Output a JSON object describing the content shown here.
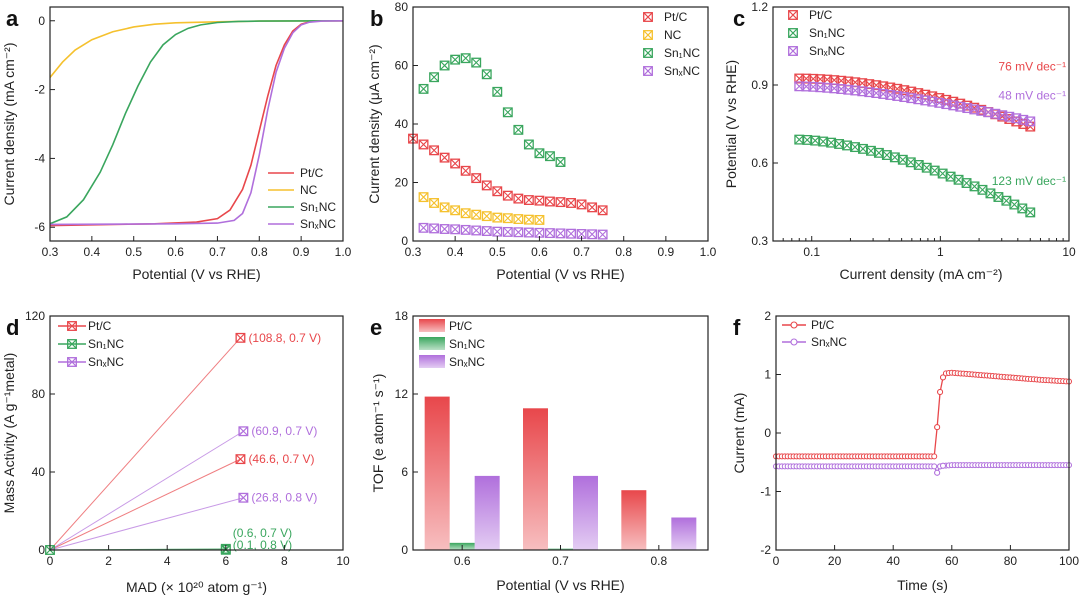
{
  "figure": {
    "panel_letters": [
      "a",
      "b",
      "c",
      "d",
      "e",
      "f"
    ]
  },
  "colors": {
    "pt": "#e8474b",
    "nc": "#f5c12e",
    "sn1": "#3aa65e",
    "snx": "#b06fdc"
  },
  "chart_data": [
    {
      "panel": "a",
      "type": "line",
      "xlabel": "Potential (V vs RHE)",
      "ylabel": "Current density (mA cm⁻²)",
      "xlim": [
        0.3,
        1.0
      ],
      "ylim": [
        -6.4,
        0.4
      ],
      "xticks": [
        "0.3",
        "0.4",
        "0.5",
        "0.6",
        "0.7",
        "0.8",
        "0.9",
        "1.0"
      ],
      "yticks": [
        "0",
        "-2",
        "-4",
        "-6"
      ],
      "series": [
        {
          "name": "Pt/C",
          "label": "Pt/C",
          "color": "#e8474b",
          "x": [
            0.3,
            0.55,
            0.65,
            0.7,
            0.73,
            0.76,
            0.78,
            0.8,
            0.82,
            0.84,
            0.86,
            0.88,
            0.9,
            0.92,
            0.95,
            1.0
          ],
          "y": [
            -5.95,
            -5.9,
            -5.85,
            -5.75,
            -5.5,
            -4.9,
            -4.2,
            -3.2,
            -2.2,
            -1.3,
            -0.7,
            -0.3,
            -0.1,
            -0.03,
            0,
            0
          ]
        },
        {
          "name": "NC",
          "label": "NC",
          "color": "#f5c12e",
          "x": [
            0.3,
            0.33,
            0.36,
            0.4,
            0.45,
            0.5,
            0.55,
            0.6,
            0.7,
            0.8,
            1.0
          ],
          "y": [
            -1.65,
            -1.2,
            -0.85,
            -0.55,
            -0.32,
            -0.18,
            -0.1,
            -0.06,
            -0.03,
            -0.01,
            0
          ]
        },
        {
          "name": "Sn1NC",
          "label": "Sn₁NC",
          "color": "#3aa65e",
          "x": [
            0.3,
            0.34,
            0.38,
            0.42,
            0.45,
            0.48,
            0.51,
            0.54,
            0.57,
            0.6,
            0.63,
            0.66,
            0.7,
            0.75,
            0.8,
            1.0
          ],
          "y": [
            -5.9,
            -5.7,
            -5.2,
            -4.4,
            -3.6,
            -2.7,
            -1.9,
            -1.2,
            -0.7,
            -0.4,
            -0.22,
            -0.12,
            -0.05,
            -0.02,
            -0.01,
            0
          ]
        },
        {
          "name": "SnxNC",
          "label": "SnₓNC",
          "color": "#b06fdc",
          "x": [
            0.3,
            0.6,
            0.7,
            0.74,
            0.76,
            0.78,
            0.8,
            0.82,
            0.84,
            0.86,
            0.88,
            0.9,
            0.92,
            0.95,
            1.0
          ],
          "y": [
            -5.92,
            -5.9,
            -5.88,
            -5.8,
            -5.6,
            -5.0,
            -3.9,
            -2.6,
            -1.5,
            -0.8,
            -0.35,
            -0.12,
            -0.04,
            -0.01,
            0
          ]
        }
      ]
    },
    {
      "panel": "b",
      "type": "scatter",
      "xlabel": "Potential (V vs RHE)",
      "ylabel": "Current density (μA cm⁻²)",
      "xlim": [
        0.3,
        1.0
      ],
      "ylim": [
        0,
        80
      ],
      "xticks": [
        "0.3",
        "0.4",
        "0.5",
        "0.6",
        "0.7",
        "0.8",
        "0.9",
        "1.0"
      ],
      "yticks": [
        "0",
        "20",
        "40",
        "60",
        "80"
      ],
      "series": [
        {
          "name": "Pt/C",
          "label": "Pt/C",
          "color": "#e8474b",
          "x": [
            0.3,
            0.325,
            0.35,
            0.375,
            0.4,
            0.425,
            0.45,
            0.475,
            0.5,
            0.525,
            0.55,
            0.575,
            0.6,
            0.625,
            0.65,
            0.675,
            0.7,
            0.725,
            0.75
          ],
          "y": [
            35,
            33,
            31,
            28.5,
            26.5,
            24,
            21.5,
            19,
            17,
            15.5,
            14.5,
            14,
            13.8,
            13.5,
            13.3,
            13,
            12.5,
            11.5,
            10.5
          ]
        },
        {
          "name": "NC",
          "label": "NC",
          "color": "#f5c12e",
          "x": [
            0.325,
            0.35,
            0.375,
            0.4,
            0.425,
            0.45,
            0.475,
            0.5,
            0.525,
            0.55,
            0.575,
            0.6
          ],
          "y": [
            15,
            13,
            11.5,
            10.5,
            9.5,
            9,
            8.5,
            8,
            7.8,
            7.5,
            7.3,
            7.2
          ]
        },
        {
          "name": "Sn1NC",
          "label": "Sn₁NC",
          "color": "#3aa65e",
          "x": [
            0.325,
            0.35,
            0.375,
            0.4,
            0.425,
            0.45,
            0.475,
            0.5,
            0.525,
            0.55,
            0.575,
            0.6,
            0.625,
            0.65
          ],
          "y": [
            52,
            56,
            60,
            62,
            62.5,
            61,
            57,
            51,
            44,
            38,
            33,
            30,
            29,
            27
          ]
        },
        {
          "name": "SnxNC",
          "label": "SnₓNC",
          "color": "#b06fdc",
          "x": [
            0.325,
            0.35,
            0.375,
            0.4,
            0.425,
            0.45,
            0.475,
            0.5,
            0.525,
            0.55,
            0.575,
            0.6,
            0.625,
            0.65,
            0.675,
            0.7,
            0.725,
            0.75
          ],
          "y": [
            4.5,
            4.3,
            4.1,
            4,
            3.8,
            3.6,
            3.4,
            3.2,
            3.1,
            3,
            2.9,
            2.8,
            2.7,
            2.6,
            2.5,
            2.4,
            2.3,
            2.2
          ]
        }
      ]
    },
    {
      "panel": "c",
      "type": "scatter",
      "xscale": "log",
      "xlabel": "Current density (mA cm⁻²)",
      "ylabel": "Potential (V vs RHE)",
      "xlim": [
        0.05,
        10
      ],
      "ylim": [
        0.3,
        1.2
      ],
      "xticks": [
        {
          "v": 0.1,
          "label": "0.1"
        },
        {
          "v": 1,
          "label": "1"
        },
        {
          "v": 10,
          "label": "10"
        }
      ],
      "yticks": [
        "0.3",
        "0.6",
        "0.9",
        "1.2"
      ],
      "annotations": [
        {
          "text": "76 mV dec⁻¹",
          "x": 9.5,
          "y": 0.955,
          "color": "#e8474b"
        },
        {
          "text": "48 mV dec⁻¹",
          "x": 9.5,
          "y": 0.845,
          "color": "#b06fdc"
        },
        {
          "text": "123 mV dec⁻¹",
          "x": 9.5,
          "y": 0.515,
          "color": "#3aa65e"
        }
      ],
      "series": [
        {
          "name": "Pt/C",
          "label": "Pt/C",
          "color": "#e8474b",
          "x0": 0.08,
          "x1": 5.0,
          "n": 34,
          "y0": 0.925,
          "y1": 0.74,
          "curve": 1.8
        },
        {
          "name": "Sn1NC",
          "label": "Sn₁NC",
          "color": "#3aa65e",
          "x0": 0.08,
          "x1": 5.0,
          "n": 30,
          "y0": 0.69,
          "y1": 0.41,
          "curve": 1.6
        },
        {
          "name": "SnxNC",
          "label": "SnₓNC",
          "color": "#b06fdc",
          "x0": 0.08,
          "x1": 5.0,
          "n": 34,
          "y0": 0.895,
          "y1": 0.76,
          "curve": 1.5
        }
      ]
    },
    {
      "panel": "d",
      "type": "scatter",
      "xlabel": "MAD (× 10²⁰ atom g⁻¹)",
      "ylabel": "Mass Activity (A g⁻¹metal)",
      "xlim": [
        0,
        10
      ],
      "ylim": [
        0,
        120
      ],
      "xticks": [
        "0",
        "2",
        "4",
        "6",
        "8",
        "10"
      ],
      "yticks": [
        "0",
        "40",
        "80",
        "120"
      ],
      "series": [
        {
          "name": "Pt/C",
          "label": "Pt/C",
          "color": "#e8474b",
          "points": [
            {
              "x": 6.5,
              "y": 108.8,
              "label": "(108.8, 0.7 V)"
            },
            {
              "x": 6.5,
              "y": 46.6,
              "label": "(46.6, 0.7 V)"
            }
          ]
        },
        {
          "name": "Sn1NC",
          "label": "Sn₁NC",
          "color": "#3aa65e",
          "points": [
            {
              "x": 6.0,
              "y": 0.6,
              "label": "(0.6, 0.7 V)"
            },
            {
              "x": 6.0,
              "y": 0.1,
              "label": "(0.1, 0.8 V)"
            }
          ]
        },
        {
          "name": "SnxNC",
          "label": "SnₓNC",
          "color": "#b06fdc",
          "points": [
            {
              "x": 6.6,
              "y": 60.9,
              "label": "(60.9, 0.7 V)"
            },
            {
              "x": 6.6,
              "y": 26.8,
              "label": "(26.8, 0.8 V)"
            }
          ]
        }
      ]
    },
    {
      "panel": "e",
      "type": "bar",
      "xlabel": "Potential (V vs RHE)",
      "ylabel": "TOF (e atom⁻¹ s⁻¹)",
      "categories": [
        "0.6",
        "0.7",
        "0.8"
      ],
      "ylim": [
        0,
        18
      ],
      "yticks": [
        "0",
        "6",
        "12",
        "18"
      ],
      "series": [
        {
          "name": "Pt/C",
          "label": "Pt/C",
          "color": "#e8474b",
          "values": [
            11.8,
            10.9,
            4.6
          ]
        },
        {
          "name": "Sn1NC",
          "label": "Sn₁NC",
          "color": "#3aa65e",
          "values": [
            0.55,
            0.1,
            0.02
          ]
        },
        {
          "name": "SnxNC",
          "label": "SnₓNC",
          "color": "#b06fdc",
          "values": [
            5.7,
            5.7,
            2.5
          ]
        }
      ]
    },
    {
      "panel": "f",
      "type": "line",
      "xlabel": "Time (s)",
      "ylabel": "Current (mA)",
      "xlim": [
        0,
        100
      ],
      "ylim": [
        -2,
        2
      ],
      "xticks": [
        "0",
        "20",
        "40",
        "60",
        "80",
        "100"
      ],
      "yticks": [
        "-2",
        "-1",
        "0",
        "1",
        "2"
      ],
      "series": [
        {
          "name": "Pt/C",
          "label": "Pt/C",
          "color": "#e8474b",
          "x": [
            0,
            10,
            20,
            30,
            40,
            50,
            54,
            55,
            56,
            57,
            58,
            60,
            65,
            70,
            80,
            90,
            100
          ],
          "y": [
            -0.4,
            -0.4,
            -0.4,
            -0.4,
            -0.4,
            -0.4,
            -0.4,
            0.1,
            0.7,
            0.95,
            1.02,
            1.03,
            1.01,
            0.99,
            0.95,
            0.91,
            0.88
          ]
        },
        {
          "name": "SnxNC",
          "label": "SnₓNC",
          "color": "#b06fdc",
          "x": [
            0,
            10,
            20,
            30,
            40,
            50,
            54,
            55,
            56,
            57,
            60,
            70,
            80,
            90,
            100
          ],
          "y": [
            -0.57,
            -0.57,
            -0.57,
            -0.57,
            -0.57,
            -0.57,
            -0.57,
            -0.68,
            -0.57,
            -0.56,
            -0.55,
            -0.55,
            -0.55,
            -0.55,
            -0.55
          ]
        }
      ]
    }
  ]
}
